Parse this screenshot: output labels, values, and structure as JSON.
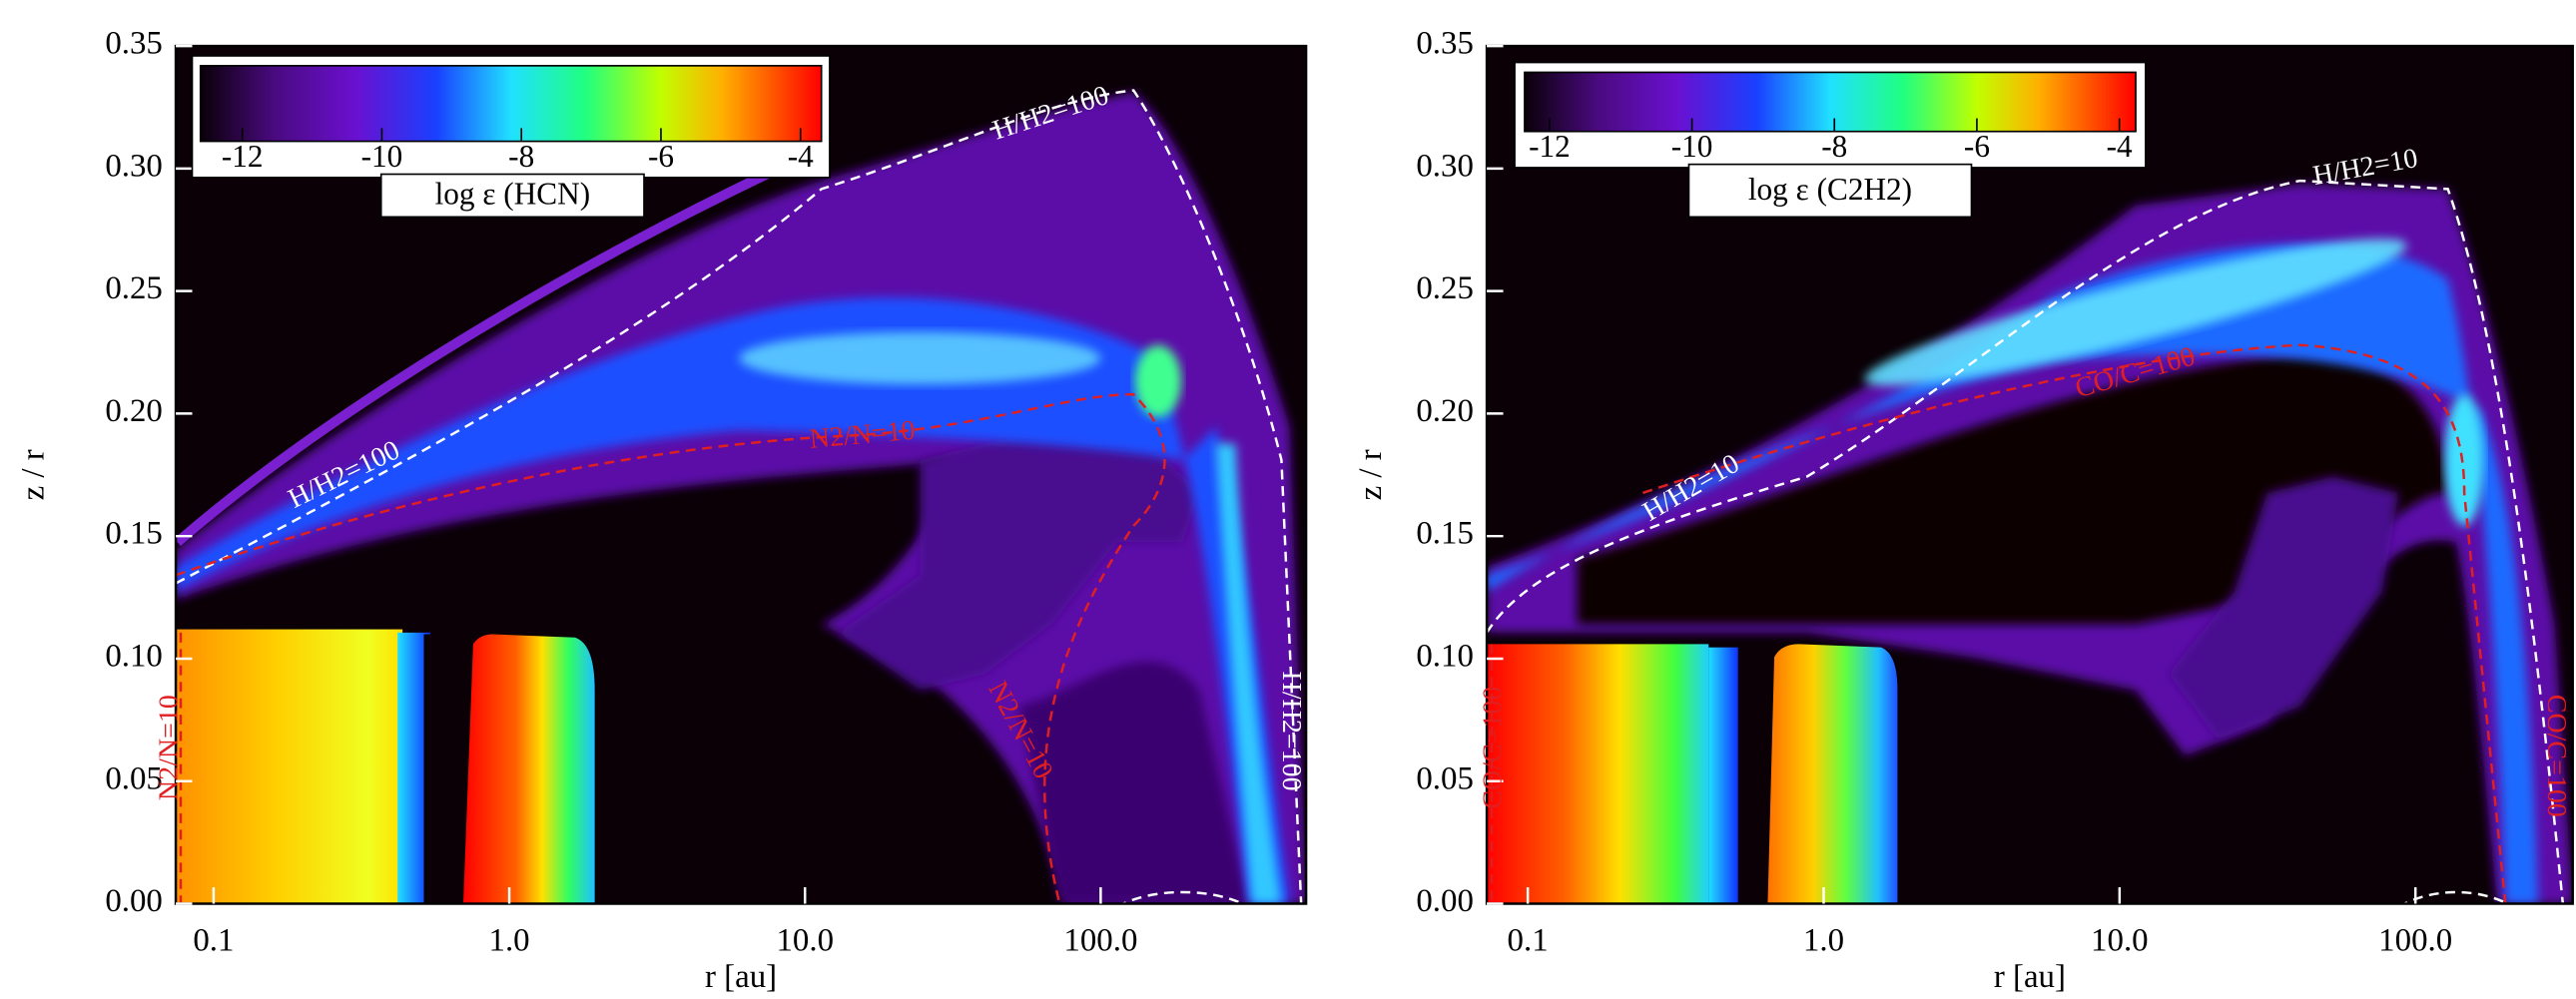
{
  "chart_data": [
    {
      "type": "heatmap",
      "xlabel": "r [au]",
      "ylabel": "z / r",
      "log_x": true,
      "xlim": [
        0.0745,
        495
      ],
      "ylim": [
        0,
        0.35
      ],
      "xticks": [
        0.1,
        {
          "value": 1,
          "label": "1.0"
        },
        {
          "value": 10,
          "label": "10.0"
        },
        {
          "value": 100,
          "label": "100.0"
        }
      ],
      "yticks": [
        {
          "value": 0,
          "label": "0.00"
        },
        0.05,
        {
          "value": 0.1,
          "label": "0.10"
        },
        0.15,
        {
          "value": 0.2,
          "label": "0.20"
        },
        0.25,
        {
          "value": 0.3,
          "label": "0.30"
        },
        0.35
      ],
      "colorbar": {
        "label": "log ε (HCN)",
        "lim": [
          -12.6,
          -3.7
        ],
        "ticks": [
          -12,
          -10,
          -8,
          -6,
          -4
        ]
      },
      "annotations": [
        {
          "text": "H/H2=100",
          "color": "#ffffff"
        },
        {
          "text": "H/H2=100",
          "color": "#ffffff"
        },
        {
          "text": "N2/N=10",
          "color": "#e02020"
        },
        {
          "text": "N2/N=10",
          "color": "#e02020"
        },
        {
          "text": "N2/N=10",
          "color": "#e02020"
        },
        {
          "text": "H/H2=100",
          "color": "#ffffff"
        }
      ]
    },
    {
      "type": "heatmap",
      "xlabel": "r [au]",
      "ylabel": "z / r",
      "log_x": true,
      "xlim": [
        0.0727,
        340
      ],
      "ylim": [
        0,
        0.35
      ],
      "xticks": [
        0.1,
        {
          "value": 1,
          "label": "1.0"
        },
        {
          "value": 10,
          "label": "10.0"
        },
        {
          "value": 100,
          "label": "100.0"
        }
      ],
      "yticks": [
        {
          "value": 0,
          "label": "0.00"
        },
        0.05,
        {
          "value": 0.1,
          "label": "0.10"
        },
        0.15,
        {
          "value": 0.2,
          "label": "0.20"
        },
        0.25,
        {
          "value": 0.3,
          "label": "0.30"
        },
        0.35
      ],
      "colorbar": {
        "label": "log ε (C2H2)",
        "lim": [
          -12.35,
          -3.77
        ],
        "ticks": [
          -12,
          -10,
          -8,
          -6,
          -4
        ]
      },
      "annotations": [
        {
          "text": "H/H2=10",
          "color": "#ffffff"
        },
        {
          "text": "H/H2=10",
          "color": "#ffffff"
        },
        {
          "text": "CO/C=100",
          "color": "#e02020"
        },
        {
          "text": "CO/C=100",
          "color": "#e02020"
        },
        {
          "text": "CO/C=100",
          "color": "#e02020"
        }
      ]
    }
  ]
}
